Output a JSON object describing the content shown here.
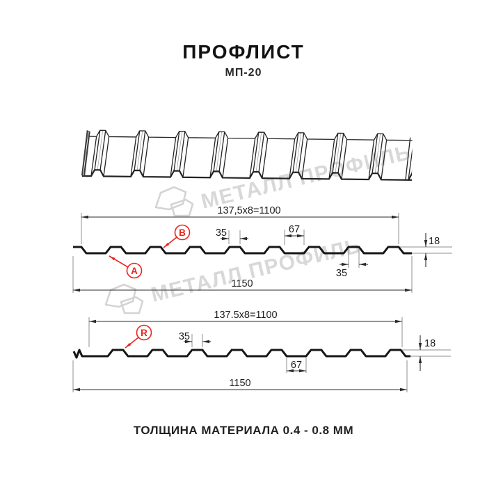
{
  "header": {
    "title": "ПРОФЛИСТ",
    "subtitle": "МП-20"
  },
  "watermark": {
    "brand": "МЕТАЛЛ ПРОФИЛЬ",
    "color": "#d8d8d8"
  },
  "colors": {
    "accent_red": "#e8231f",
    "line_dark": "#1a1a1a"
  },
  "profile_top": {
    "point_labels": {
      "a": "А",
      "b": "В"
    },
    "dims": {
      "pitch_formula": "137,5x8=1100",
      "overall_width": "1150",
      "rib_top_width": "35",
      "valley_width": "67",
      "height": "18",
      "rib_bottom_width": "35"
    }
  },
  "profile_bottom": {
    "point_labels": {
      "r": "R"
    },
    "dims": {
      "pitch_formula": "137.5x8=1100",
      "overall_width": "1150",
      "rib_top_width": "35",
      "valley_width": "67",
      "height": "18"
    }
  },
  "footer": {
    "material_note": "ТОЛЩИНА МАТЕРИАЛА 0.4 - 0.8 ММ"
  }
}
